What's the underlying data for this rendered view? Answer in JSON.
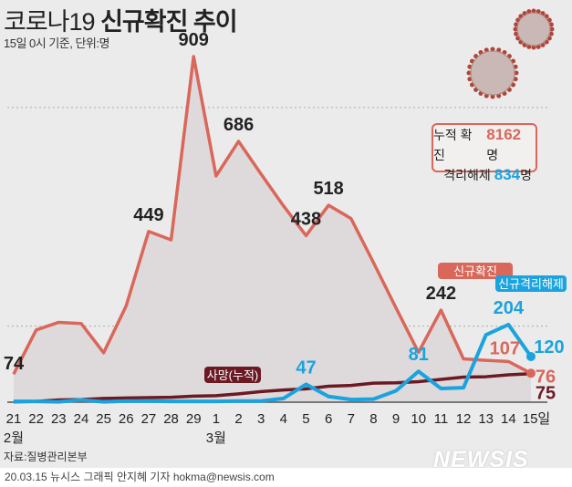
{
  "header": {
    "title_light": "코로나19 ",
    "title_bold": "신규확진 추이",
    "subtitle": "15일 0시 기준, 단위:명"
  },
  "summary": {
    "cum_label": "누적 확진",
    "cum_value": "8162",
    "release_label": "격리해제",
    "release_value": "834",
    "unit": "명"
  },
  "source": "자료:질병관리본부",
  "footer": "20.03.15 뉴시스 그래픽 안지혜 기자 hokma@newsis.com",
  "logo": "NEWSIS",
  "colors": {
    "new_cases": "#d9675a",
    "released": "#1aa3de",
    "deaths": "#6b1a24",
    "area": "#dedadb"
  },
  "chart_data": {
    "type": "line",
    "categories": [
      "21",
      "22",
      "23",
      "24",
      "25",
      "26",
      "27",
      "28",
      "29",
      "1",
      "2",
      "3",
      "4",
      "5",
      "6",
      "7",
      "8",
      "9",
      "10",
      "11",
      "12",
      "13",
      "14",
      "15일"
    ],
    "month_labels": [
      {
        "index": 0,
        "label": "2월"
      },
      {
        "index": 9,
        "label": "3월"
      }
    ],
    "ylim": [
      0,
      909
    ],
    "grid": "dotted horizontal",
    "series": [
      {
        "name": "신규확진",
        "color": "#d9675a",
        "area": true,
        "values": [
          74,
          190,
          210,
          207,
          130,
          253,
          449,
          427,
          909,
          595,
          686,
          600,
          516,
          438,
          518,
          483,
          367,
          248,
          131,
          242,
          114,
          110,
          107,
          76
        ],
        "labels": {
          "0": "74",
          "6": "449",
          "8": "909",
          "10": "686",
          "13": "438",
          "14": "518",
          "19": "242",
          "22": "107",
          "23": "76"
        }
      },
      {
        "name": "신규격리해제",
        "color": "#1aa3de",
        "values": [
          2,
          2,
          1,
          6,
          1,
          3,
          3,
          2,
          2,
          2,
          3,
          3,
          10,
          47,
          15,
          7,
          8,
          30,
          81,
          36,
          38,
          177,
          204,
          120
        ],
        "labels": {
          "13": "47",
          "18": "81",
          "22": "204",
          "23": "120"
        }
      },
      {
        "name": "사망(누적)",
        "color": "#6b1a24",
        "values": [
          1,
          2,
          6,
          7,
          10,
          11,
          12,
          13,
          16,
          17,
          22,
          28,
          32,
          35,
          42,
          44,
          50,
          51,
          54,
          60,
          66,
          67,
          72,
          75
        ],
        "labels": {
          "23": "75"
        }
      }
    ]
  }
}
